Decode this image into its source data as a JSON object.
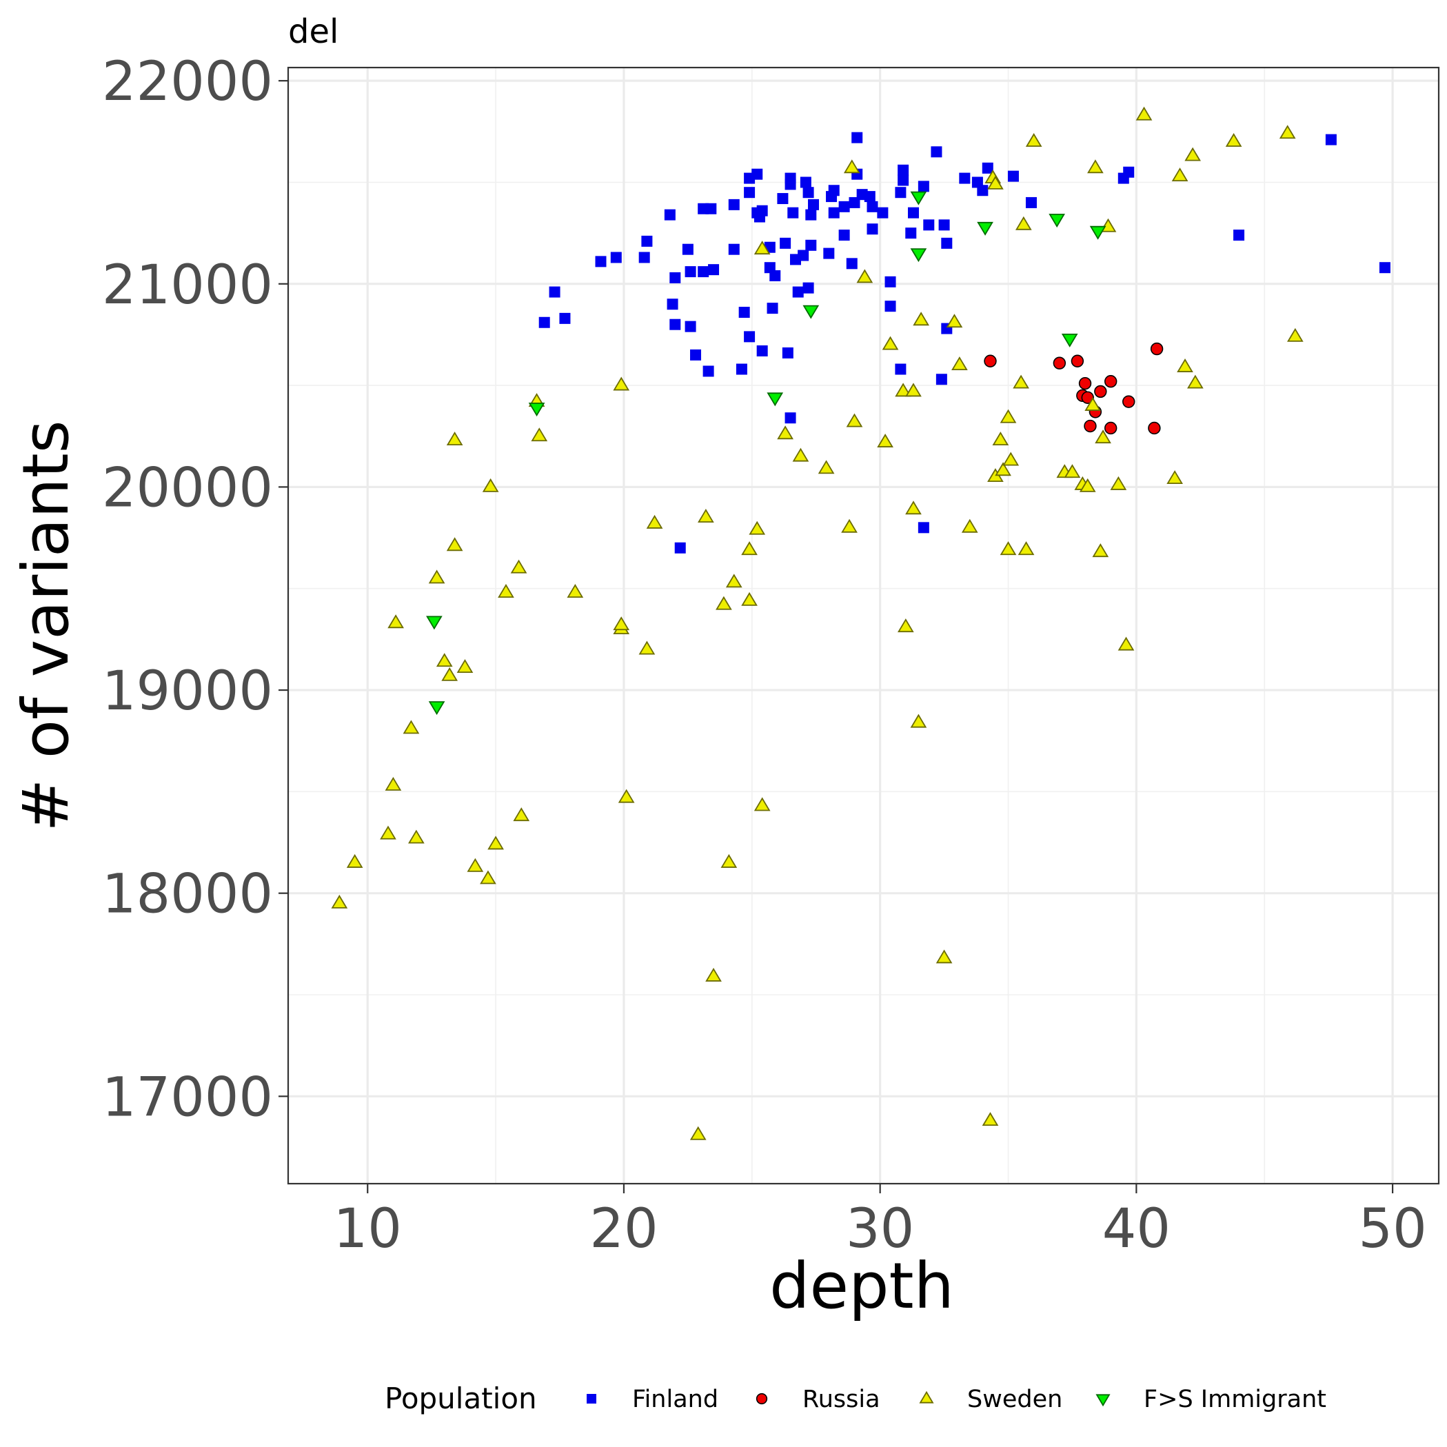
{
  "chart_data": {
    "type": "scatter",
    "title": "del",
    "xlabel": "depth",
    "ylabel": "# of variants",
    "xlim": [
      6.9,
      51.8
    ],
    "ylim": [
      16570,
      22065
    ],
    "x_ticks": [
      10,
      20,
      30,
      40,
      50
    ],
    "y_ticks": [
      17000,
      18000,
      19000,
      20000,
      21000,
      22000
    ],
    "x_tick_labels": [
      "10",
      "20",
      "30",
      "40",
      "50"
    ],
    "y_tick_labels": [
      "17000",
      "18000",
      "19000",
      "20000",
      "21000",
      "22000"
    ],
    "grid": true,
    "legend": {
      "title": "Population",
      "position": "bottom"
    },
    "series": [
      {
        "name": "Finland",
        "marker": "square",
        "color": "#0000ee",
        "points": [
          [
            16.9,
            20810
          ],
          [
            17.3,
            20960
          ],
          [
            17.7,
            20830
          ],
          [
            19.1,
            21110
          ],
          [
            19.7,
            21130
          ],
          [
            20.8,
            21130
          ],
          [
            20.9,
            21210
          ],
          [
            21.8,
            21340
          ],
          [
            21.9,
            20900
          ],
          [
            22.0,
            20800
          ],
          [
            22.0,
            21030
          ],
          [
            22.2,
            19700
          ],
          [
            22.5,
            21170
          ],
          [
            22.6,
            20790
          ],
          [
            22.6,
            21060
          ],
          [
            22.8,
            20650
          ],
          [
            23.1,
            21370
          ],
          [
            23.1,
            21060
          ],
          [
            23.3,
            20570
          ],
          [
            23.4,
            21370
          ],
          [
            23.5,
            21070
          ],
          [
            24.3,
            21170
          ],
          [
            24.3,
            21390
          ],
          [
            24.6,
            20580
          ],
          [
            24.7,
            20860
          ],
          [
            24.9,
            21520
          ],
          [
            24.9,
            21450
          ],
          [
            24.9,
            20740
          ],
          [
            25.2,
            21350
          ],
          [
            25.2,
            21540
          ],
          [
            25.3,
            21330
          ],
          [
            25.4,
            21360
          ],
          [
            25.4,
            20670
          ],
          [
            25.7,
            21180
          ],
          [
            25.7,
            21080
          ],
          [
            25.8,
            20880
          ],
          [
            25.9,
            21040
          ],
          [
            26.2,
            21420
          ],
          [
            26.3,
            21200
          ],
          [
            26.4,
            20660
          ],
          [
            26.5,
            21520
          ],
          [
            26.5,
            21490
          ],
          [
            26.5,
            20340
          ],
          [
            26.6,
            21350
          ],
          [
            26.7,
            21120
          ],
          [
            26.8,
            20960
          ],
          [
            27.0,
            21140
          ],
          [
            27.1,
            21500
          ],
          [
            27.2,
            21450
          ],
          [
            27.2,
            20980
          ],
          [
            27.3,
            21190
          ],
          [
            27.3,
            21340
          ],
          [
            27.4,
            21390
          ],
          [
            28.0,
            21150
          ],
          [
            28.1,
            21430
          ],
          [
            28.2,
            21350
          ],
          [
            28.2,
            21460
          ],
          [
            28.6,
            21240
          ],
          [
            28.6,
            21380
          ],
          [
            28.9,
            21100
          ],
          [
            29.0,
            21400
          ],
          [
            29.1,
            21720
          ],
          [
            29.1,
            21540
          ],
          [
            29.3,
            21440
          ],
          [
            29.6,
            21430
          ],
          [
            29.7,
            21270
          ],
          [
            29.7,
            21380
          ],
          [
            30.1,
            21350
          ],
          [
            30.4,
            21010
          ],
          [
            30.4,
            20890
          ],
          [
            30.8,
            20580
          ],
          [
            30.8,
            21450
          ],
          [
            30.9,
            21510
          ],
          [
            30.9,
            21560
          ],
          [
            31.2,
            21250
          ],
          [
            31.3,
            21350
          ],
          [
            31.7,
            21480
          ],
          [
            31.7,
            19800
          ],
          [
            31.9,
            21290
          ],
          [
            32.2,
            21650
          ],
          [
            32.4,
            20530
          ],
          [
            32.5,
            21290
          ],
          [
            32.6,
            21200
          ],
          [
            32.6,
            20780
          ],
          [
            33.3,
            21520
          ],
          [
            33.8,
            21500
          ],
          [
            34.0,
            21460
          ],
          [
            34.2,
            21570
          ],
          [
            35.2,
            21530
          ],
          [
            35.9,
            21400
          ],
          [
            39.5,
            21520
          ],
          [
            39.7,
            21550
          ],
          [
            44.0,
            21240
          ],
          [
            47.6,
            21710
          ],
          [
            49.7,
            21080
          ]
        ]
      },
      {
        "name": "Russia",
        "marker": "circle",
        "color": "#ee0000",
        "points": [
          [
            34.3,
            20620
          ],
          [
            37.0,
            20610
          ],
          [
            37.7,
            20620
          ],
          [
            37.9,
            20450
          ],
          [
            38.0,
            20510
          ],
          [
            38.1,
            20440
          ],
          [
            38.2,
            20300
          ],
          [
            38.4,
            20370
          ],
          [
            38.6,
            20470
          ],
          [
            39.0,
            20520
          ],
          [
            39.0,
            20290
          ],
          [
            39.7,
            20420
          ],
          [
            40.7,
            20290
          ],
          [
            40.8,
            20680
          ]
        ]
      },
      {
        "name": "Sweden",
        "marker": "triangle-up",
        "color": "#eeee00",
        "points": [
          [
            8.9,
            17950
          ],
          [
            9.5,
            18150
          ],
          [
            10.8,
            18290
          ],
          [
            11.0,
            18530
          ],
          [
            11.1,
            19330
          ],
          [
            11.7,
            18810
          ],
          [
            11.9,
            18270
          ],
          [
            12.7,
            19550
          ],
          [
            13.0,
            19140
          ],
          [
            13.2,
            19070
          ],
          [
            13.4,
            19710
          ],
          [
            13.4,
            20230
          ],
          [
            13.8,
            19110
          ],
          [
            14.2,
            18130
          ],
          [
            14.7,
            18070
          ],
          [
            14.8,
            20000
          ],
          [
            15.0,
            18240
          ],
          [
            15.4,
            19480
          ],
          [
            15.9,
            19600
          ],
          [
            16.0,
            18380
          ],
          [
            16.6,
            20420
          ],
          [
            16.7,
            20250
          ],
          [
            18.1,
            19480
          ],
          [
            19.9,
            19300
          ],
          [
            19.9,
            19320
          ],
          [
            19.9,
            20500
          ],
          [
            20.1,
            18470
          ],
          [
            20.9,
            19200
          ],
          [
            21.2,
            19820
          ],
          [
            22.9,
            16810
          ],
          [
            23.2,
            19850
          ],
          [
            23.5,
            17590
          ],
          [
            23.9,
            19420
          ],
          [
            24.1,
            18150
          ],
          [
            24.3,
            19530
          ],
          [
            24.9,
            19690
          ],
          [
            24.9,
            19440
          ],
          [
            25.2,
            19790
          ],
          [
            25.4,
            21170
          ],
          [
            25.4,
            18430
          ],
          [
            26.3,
            20260
          ],
          [
            26.9,
            20150
          ],
          [
            27.9,
            20090
          ],
          [
            28.8,
            19800
          ],
          [
            28.9,
            21570
          ],
          [
            29.0,
            20320
          ],
          [
            29.4,
            21030
          ],
          [
            30.2,
            20220
          ],
          [
            30.4,
            20700
          ],
          [
            30.9,
            20470
          ],
          [
            31.0,
            19310
          ],
          [
            31.3,
            19890
          ],
          [
            31.3,
            20470
          ],
          [
            31.5,
            18840
          ],
          [
            31.6,
            20820
          ],
          [
            32.5,
            17680
          ],
          [
            32.9,
            20810
          ],
          [
            33.1,
            20600
          ],
          [
            33.5,
            19800
          ],
          [
            34.3,
            16880
          ],
          [
            34.4,
            21520
          ],
          [
            34.5,
            20050
          ],
          [
            34.5,
            21490
          ],
          [
            34.7,
            20230
          ],
          [
            34.8,
            20080
          ],
          [
            35.0,
            19690
          ],
          [
            35.0,
            20340
          ],
          [
            35.1,
            20130
          ],
          [
            35.5,
            20510
          ],
          [
            35.6,
            21290
          ],
          [
            35.7,
            19690
          ],
          [
            36.0,
            21700
          ],
          [
            37.2,
            20070
          ],
          [
            37.5,
            20070
          ],
          [
            37.9,
            20010
          ],
          [
            38.1,
            20000
          ],
          [
            38.3,
            20400
          ],
          [
            38.4,
            21570
          ],
          [
            38.6,
            19680
          ],
          [
            38.7,
            20240
          ],
          [
            38.9,
            21280
          ],
          [
            39.3,
            20010
          ],
          [
            39.6,
            19220
          ],
          [
            40.3,
            21830
          ],
          [
            41.5,
            20040
          ],
          [
            41.7,
            21530
          ],
          [
            41.9,
            20590
          ],
          [
            42.2,
            21630
          ],
          [
            42.3,
            20510
          ],
          [
            43.8,
            21700
          ],
          [
            45.9,
            21740
          ],
          [
            46.2,
            20740
          ]
        ]
      },
      {
        "name": "F>S Immigrant",
        "marker": "triangle-down",
        "color": "#00ee00",
        "points": [
          [
            12.6,
            19340
          ],
          [
            12.7,
            18920
          ],
          [
            16.6,
            20390
          ],
          [
            25.9,
            20440
          ],
          [
            27.3,
            20870
          ],
          [
            31.5,
            21430
          ],
          [
            31.5,
            21150
          ],
          [
            34.1,
            21280
          ],
          [
            36.9,
            21320
          ],
          [
            37.4,
            20730
          ],
          [
            38.5,
            21260
          ]
        ]
      }
    ]
  }
}
